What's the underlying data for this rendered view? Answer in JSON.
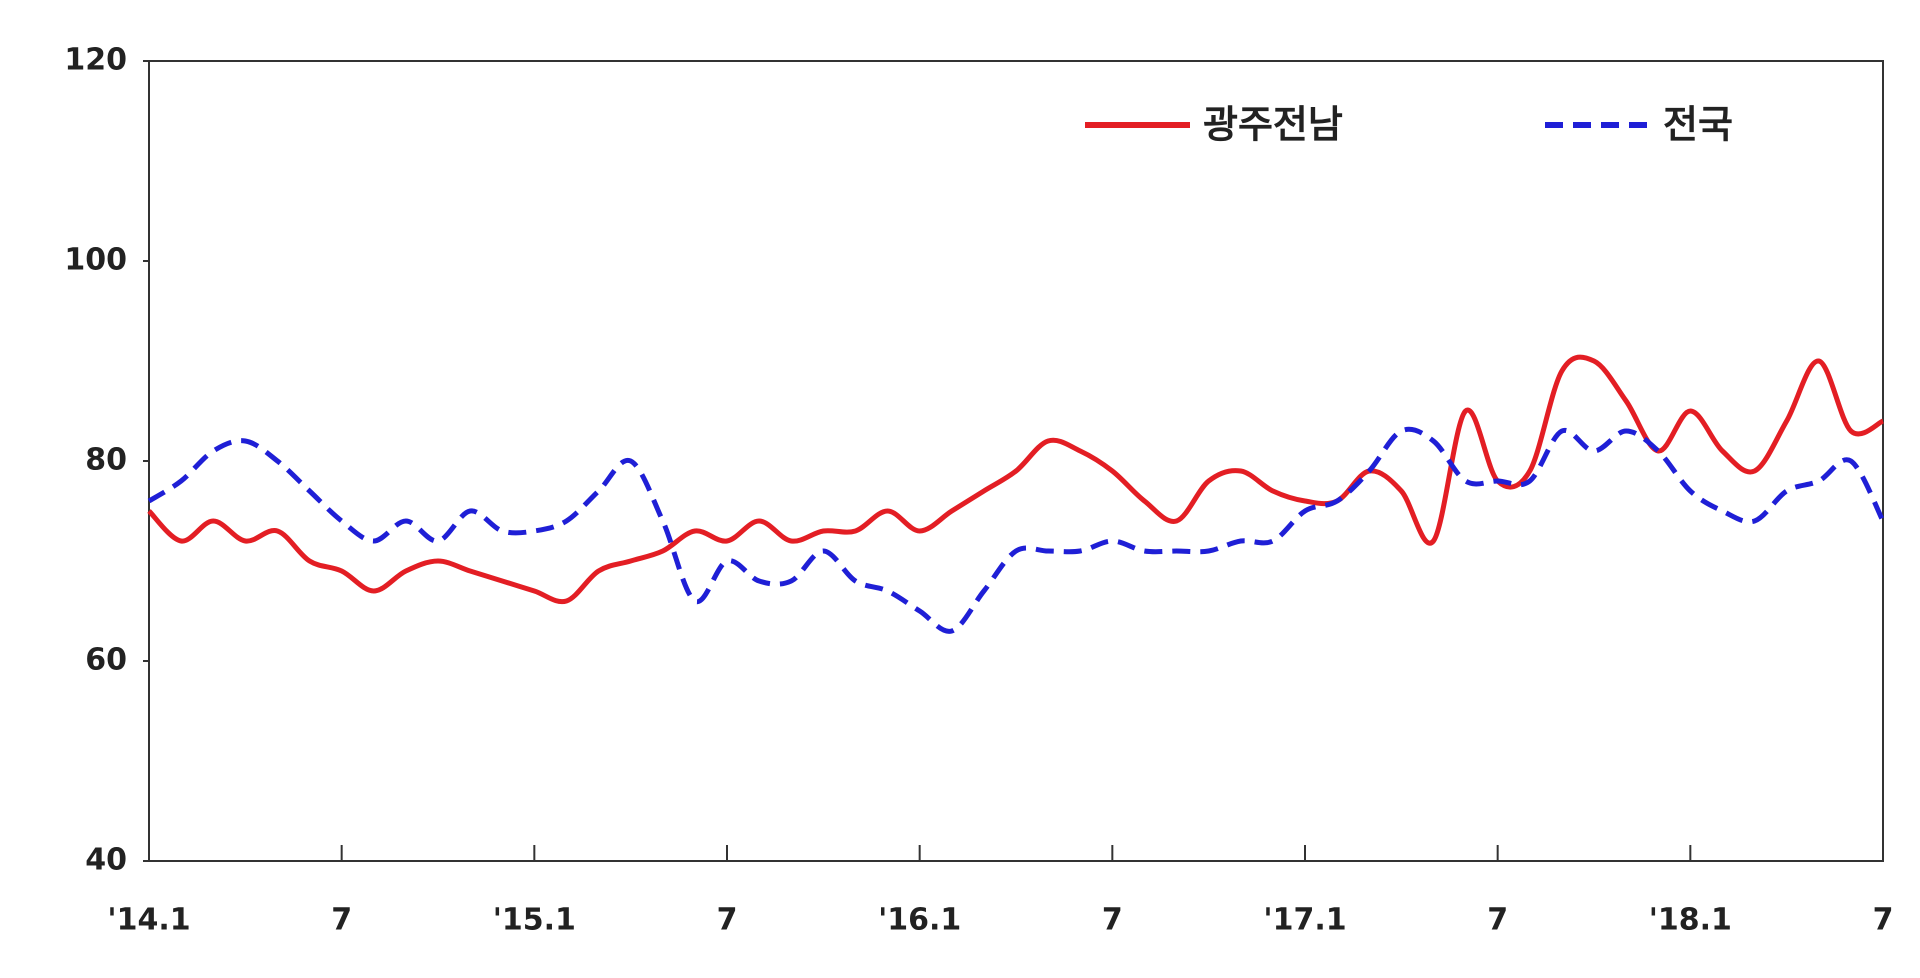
{
  "chart_data": {
    "type": "line",
    "categories": [
      "'14.1",
      null,
      null,
      null,
      null,
      null,
      "7",
      null,
      null,
      null,
      null,
      null,
      "'15.1",
      null,
      null,
      null,
      null,
      null,
      "7",
      null,
      null,
      null,
      null,
      null,
      "'16.1",
      null,
      null,
      null,
      null,
      null,
      "7",
      null,
      null,
      null,
      null,
      null,
      "'17.1",
      null,
      null,
      null,
      null,
      null,
      "7",
      null,
      null,
      null,
      null,
      null,
      "'18.1",
      null,
      null,
      null,
      null,
      null,
      "7"
    ],
    "series": [
      {
        "name": "광주전남",
        "color": "#e31e24",
        "style": "solid",
        "values": [
          75,
          72,
          74,
          72,
          73,
          70,
          69,
          67,
          69,
          70,
          69,
          68,
          67,
          66,
          69,
          70,
          71,
          73,
          72,
          74,
          72,
          73,
          73,
          75,
          73,
          75,
          77,
          79,
          82,
          81,
          79,
          76,
          74,
          78,
          79,
          77,
          76,
          76,
          79,
          77,
          72,
          85,
          78,
          79,
          89,
          90,
          86,
          81,
          85,
          81,
          79,
          84,
          90,
          83,
          84
        ]
      },
      {
        "name": "전국",
        "color": "#1f1fd6",
        "style": "dashed",
        "values": [
          76,
          78,
          81,
          82,
          80,
          77,
          74,
          72,
          74,
          72,
          75,
          73,
          73,
          74,
          77,
          80,
          74,
          66,
          70,
          68,
          68,
          71,
          68,
          67,
          65,
          63,
          67,
          71,
          71,
          71,
          72,
          71,
          71,
          71,
          72,
          72,
          75,
          76,
          79,
          83,
          82,
          78,
          78,
          78,
          83,
          81,
          83,
          81,
          77,
          75,
          74,
          77,
          78,
          80,
          74
        ]
      }
    ],
    "ylim": [
      40,
      120
    ],
    "yticks": [
      40,
      60,
      80,
      100,
      120
    ],
    "legend": "top-right"
  }
}
